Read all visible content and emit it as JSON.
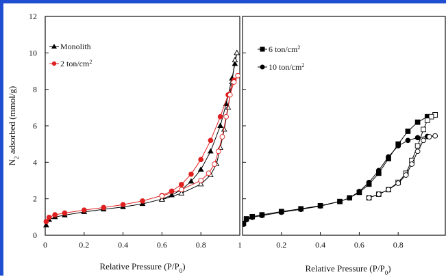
{
  "colors": {
    "frame": "#1f4fd0",
    "black": "#000000",
    "red": "#e02020"
  },
  "chart_data": [
    {
      "type": "line",
      "panel": "left",
      "ylabel_prefix": "N",
      "ylabel_sub": "2",
      "ylabel_rest": " adsorbed (mmol/g)",
      "xlabel_main": "Relative Pressure (P/P",
      "xlabel_sub": "0",
      "xlabel_end": ")",
      "xlim": [
        0,
        1
      ],
      "ylim": [
        0,
        12
      ],
      "x_ticks": [
        "0",
        "0.2",
        "0.4",
        "0.6",
        "0.8",
        "1"
      ],
      "y_ticks": [
        "0",
        "2",
        "4",
        "6",
        "8",
        "10",
        "12"
      ],
      "grid": false,
      "legend_position": "top-left",
      "series": [
        {
          "name": "Monolith",
          "marker": "triangle",
          "color": "#000000",
          "adsorption": [
            [
              0.005,
              0.55
            ],
            [
              0.02,
              0.85
            ],
            [
              0.05,
              1.0
            ],
            [
              0.1,
              1.1
            ],
            [
              0.2,
              1.28
            ],
            [
              0.3,
              1.42
            ],
            [
              0.4,
              1.55
            ],
            [
              0.5,
              1.72
            ],
            [
              0.6,
              1.98
            ],
            [
              0.65,
              2.2
            ],
            [
              0.7,
              2.5
            ],
            [
              0.75,
              2.95
            ],
            [
              0.8,
              3.6
            ],
            [
              0.85,
              4.6
            ],
            [
              0.9,
              6.0
            ],
            [
              0.93,
              7.2
            ],
            [
              0.96,
              8.6
            ],
            [
              0.975,
              9.4
            ],
            [
              0.985,
              10.0
            ]
          ],
          "desorption": [
            [
              0.985,
              10.0
            ],
            [
              0.975,
              9.6
            ],
            [
              0.96,
              8.4
            ],
            [
              0.94,
              7.0
            ],
            [
              0.92,
              5.8
            ],
            [
              0.9,
              4.8
            ],
            [
              0.88,
              3.9
            ],
            [
              0.85,
              3.3
            ],
            [
              0.8,
              2.8
            ],
            [
              0.7,
              2.3
            ],
            [
              0.6,
              1.95
            ]
          ]
        },
        {
          "name": "2 ton/cm",
          "name_sup": "2",
          "marker": "circle",
          "color": "#e02020",
          "adsorption": [
            [
              0.005,
              0.75
            ],
            [
              0.02,
              0.98
            ],
            [
              0.05,
              1.12
            ],
            [
              0.1,
              1.22
            ],
            [
              0.2,
              1.38
            ],
            [
              0.3,
              1.52
            ],
            [
              0.4,
              1.68
            ],
            [
              0.5,
              1.88
            ],
            [
              0.6,
              2.18
            ],
            [
              0.65,
              2.42
            ],
            [
              0.7,
              2.78
            ],
            [
              0.75,
              3.35
            ],
            [
              0.8,
              4.15
            ],
            [
              0.85,
              5.2
            ],
            [
              0.9,
              6.5
            ],
            [
              0.94,
              7.7
            ],
            [
              0.97,
              8.5
            ],
            [
              0.99,
              8.75
            ]
          ],
          "desorption": [
            [
              0.99,
              8.75
            ],
            [
              0.97,
              8.4
            ],
            [
              0.95,
              7.7
            ],
            [
              0.93,
              6.5
            ],
            [
              0.91,
              5.4
            ],
            [
              0.89,
              4.6
            ],
            [
              0.87,
              3.9
            ],
            [
              0.84,
              3.4
            ],
            [
              0.8,
              3.0
            ],
            [
              0.7,
              2.5
            ],
            [
              0.6,
              2.15
            ]
          ]
        }
      ]
    },
    {
      "type": "line",
      "panel": "right",
      "xlabel_main": "Relative Pressure (P/P",
      "xlabel_sub": "0",
      "xlabel_end": ")",
      "xlim": [
        0,
        1
      ],
      "ylim": [
        0,
        12
      ],
      "x_ticks": [
        "0.2",
        "0.4",
        "0.6",
        "0.8"
      ],
      "grid": false,
      "legend_position": "top-left",
      "series": [
        {
          "name": "6 ton/cm",
          "name_sup": "2",
          "marker": "square",
          "color": "#000000",
          "adsorption": [
            [
              0.005,
              0.65
            ],
            [
              0.02,
              0.9
            ],
            [
              0.05,
              1.02
            ],
            [
              0.1,
              1.12
            ],
            [
              0.2,
              1.3
            ],
            [
              0.3,
              1.45
            ],
            [
              0.4,
              1.62
            ],
            [
              0.5,
              1.85
            ],
            [
              0.55,
              2.05
            ],
            [
              0.6,
              2.35
            ],
            [
              0.65,
              2.8
            ],
            [
              0.7,
              3.4
            ],
            [
              0.75,
              4.2
            ],
            [
              0.8,
              5.0
            ],
            [
              0.85,
              5.7
            ],
            [
              0.9,
              6.2
            ],
            [
              0.95,
              6.5
            ],
            [
              0.99,
              6.6
            ]
          ],
          "desorption": [
            [
              0.99,
              6.6
            ],
            [
              0.97,
              6.5
            ],
            [
              0.95,
              6.3
            ],
            [
              0.93,
              5.8
            ],
            [
              0.9,
              4.9
            ],
            [
              0.87,
              4.1
            ],
            [
              0.84,
              3.4
            ],
            [
              0.8,
              2.9
            ],
            [
              0.75,
              2.5
            ],
            [
              0.7,
              2.25
            ],
            [
              0.65,
              2.05
            ]
          ]
        },
        {
          "name": "10 ton/cm",
          "name_sup": "2",
          "marker": "circle",
          "color": "#000000",
          "adsorption": [
            [
              0.005,
              0.6
            ],
            [
              0.02,
              0.85
            ],
            [
              0.05,
              0.98
            ],
            [
              0.1,
              1.08
            ],
            [
              0.2,
              1.26
            ],
            [
              0.3,
              1.42
            ],
            [
              0.4,
              1.6
            ],
            [
              0.5,
              1.85
            ],
            [
              0.55,
              2.05
            ],
            [
              0.6,
              2.4
            ],
            [
              0.65,
              2.9
            ],
            [
              0.7,
              3.55
            ],
            [
              0.75,
              4.3
            ],
            [
              0.8,
              4.9
            ],
            [
              0.85,
              5.2
            ],
            [
              0.9,
              5.35
            ],
            [
              0.95,
              5.42
            ],
            [
              0.99,
              5.45
            ]
          ],
          "desorption": [
            [
              0.99,
              5.45
            ],
            [
              0.96,
              5.4
            ],
            [
              0.93,
              5.2
            ],
            [
              0.9,
              4.6
            ],
            [
              0.87,
              3.9
            ],
            [
              0.84,
              3.3
            ],
            [
              0.8,
              2.85
            ],
            [
              0.75,
              2.5
            ],
            [
              0.7,
              2.25
            ],
            [
              0.65,
              2.05
            ]
          ]
        }
      ]
    }
  ]
}
